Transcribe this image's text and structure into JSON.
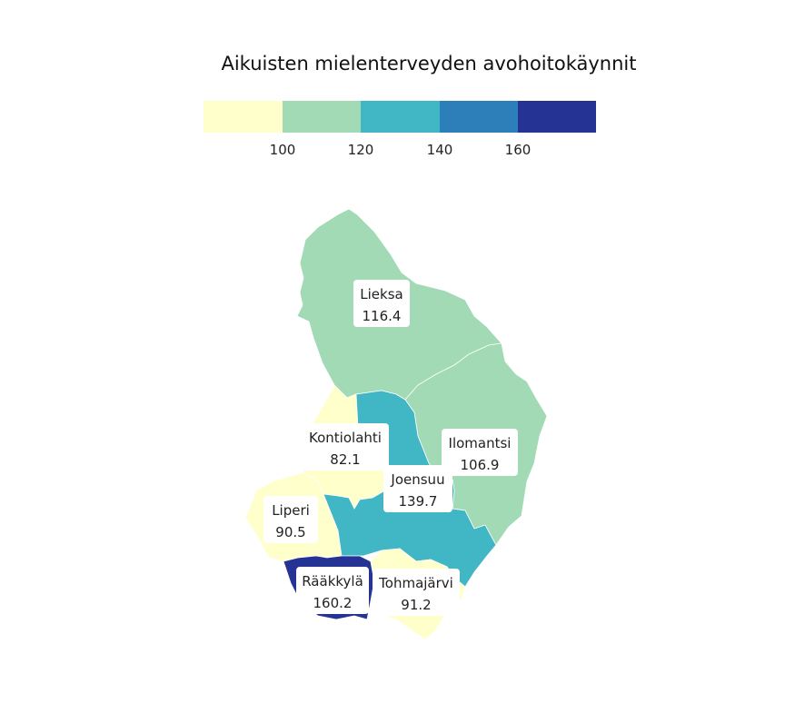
{
  "title": "Aikuisten mielenterveyden avohoitokäynnit",
  "legend": {
    "bins": [
      {
        "color": "#ffffcc"
      },
      {
        "color": "#a1dab4"
      },
      {
        "color": "#41b6c4"
      },
      {
        "color": "#2c7fb8"
      },
      {
        "color": "#253494"
      }
    ],
    "ticks": [
      "100",
      "120",
      "140",
      "160"
    ]
  },
  "regions": [
    {
      "key": "lieksa",
      "name": "Lieksa",
      "value": "116.4",
      "color": "#a1dab4"
    },
    {
      "key": "ilomantsi",
      "name": "Ilomantsi",
      "value": "106.9",
      "color": "#a1dab4"
    },
    {
      "key": "kontiolahti",
      "name": "Kontiolahti",
      "value": "82.1",
      "color": "#ffffcc"
    },
    {
      "key": "joensuu",
      "name": "Joensuu",
      "value": "139.7",
      "color": "#41b6c4"
    },
    {
      "key": "liperi",
      "name": "Liperi",
      "value": "90.5",
      "color": "#ffffcc"
    },
    {
      "key": "raakkyla",
      "name": "Rääkkylä",
      "value": "160.2",
      "color": "#253494"
    },
    {
      "key": "tohmajarvi",
      "name": "Tohmajärvi",
      "value": "91.2",
      "color": "#ffffcc"
    }
  ]
}
